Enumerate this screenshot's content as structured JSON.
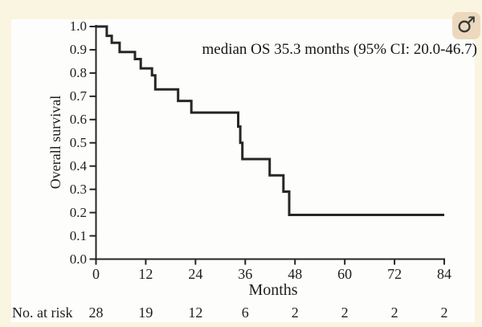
{
  "badge": {
    "icon": "male-icon",
    "glyph": "♂",
    "bg": "#ecd9bd",
    "fg": "#3a3a3a"
  },
  "colors": {
    "page_bg": "#faf5e1",
    "panel_bg": "#fdfdfc",
    "ink": "#262626"
  },
  "chart_data": {
    "type": "line",
    "variant": "kaplan-meier-step",
    "title": "",
    "annotation": "median OS 35.3 months (95% CI: 20.0-46.7)",
    "xlabel": "Months",
    "ylabel": "Overall survival",
    "xlim": [
      0,
      84
    ],
    "ylim": [
      0.0,
      1.0
    ],
    "grid": false,
    "legend": "none",
    "x_ticks": [
      0,
      12,
      24,
      36,
      48,
      60,
      72,
      84
    ],
    "y_tick_labels": [
      "0.0",
      "0.1",
      "0.2",
      "0.3",
      "0.4",
      "0.5",
      "0.6",
      "0.7",
      "0.8",
      "0.9",
      "1.0"
    ],
    "series": [
      {
        "name": "Overall survival",
        "color": "#262626",
        "step": "post",
        "points": [
          [
            0,
            1.0
          ],
          [
            2.6,
            0.96
          ],
          [
            3.8,
            0.93
          ],
          [
            5.7,
            0.89
          ],
          [
            9.4,
            0.86
          ],
          [
            10.8,
            0.82
          ],
          [
            13.5,
            0.79
          ],
          [
            14.3,
            0.73
          ],
          [
            19.8,
            0.68
          ],
          [
            23.0,
            0.63
          ],
          [
            34.3,
            0.57
          ],
          [
            34.8,
            0.5
          ],
          [
            35.3,
            0.43
          ],
          [
            41.9,
            0.36
          ],
          [
            45.2,
            0.29
          ],
          [
            46.6,
            0.19
          ],
          [
            84,
            0.19
          ]
        ]
      }
    ],
    "risk_table": {
      "label": "No. at risk",
      "months": [
        0,
        12,
        24,
        36,
        48,
        60,
        72,
        84
      ],
      "values": [
        28,
        19,
        12,
        6,
        2,
        2,
        2,
        2
      ]
    }
  }
}
